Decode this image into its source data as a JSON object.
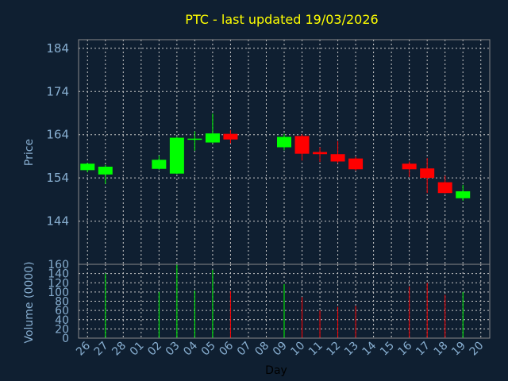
{
  "chart_data": [
    {
      "type": "candlestick",
      "title": "PTC - last updated 19/03/2026",
      "ylabel": "Price",
      "ylim": [
        134,
        186
      ],
      "yticks": [
        144,
        154,
        164,
        174,
        184
      ],
      "grid": true,
      "colors": {
        "up": "#00ff00",
        "down": "#ff0000",
        "text": "#87aed0",
        "title": "#ffff00",
        "background": "#0f1f31"
      },
      "candles": [
        {
          "day": "26",
          "open": 155.8,
          "high": 157.5,
          "low": 155.3,
          "close": 157.3
        },
        {
          "day": "27",
          "open": 154.8,
          "high": 157.0,
          "low": 152.6,
          "close": 156.6
        },
        {
          "day": "02",
          "open": 156.1,
          "high": 159.2,
          "low": 155.9,
          "close": 158.2
        },
        {
          "day": "03",
          "open": 155.0,
          "high": 163.5,
          "low": 154.9,
          "close": 163.3
        },
        {
          "day": "04",
          "open": 162.9,
          "high": 164.8,
          "low": 160.3,
          "close": 163.1
        },
        {
          "day": "05",
          "open": 162.2,
          "high": 168.9,
          "low": 162.0,
          "close": 164.3
        },
        {
          "day": "06",
          "open": 164.2,
          "high": 165.1,
          "low": 162.0,
          "close": 162.9
        },
        {
          "day": "09",
          "open": 161.1,
          "high": 164.2,
          "low": 160.4,
          "close": 163.5
        },
        {
          "day": "10",
          "open": 163.7,
          "high": 164.1,
          "low": 158.0,
          "close": 159.6
        },
        {
          "day": "11",
          "open": 160.0,
          "high": 161.1,
          "low": 157.7,
          "close": 159.5
        },
        {
          "day": "12",
          "open": 159.5,
          "high": 162.5,
          "low": 157.4,
          "close": 157.8
        },
        {
          "day": "13",
          "open": 158.5,
          "high": 158.9,
          "low": 155.7,
          "close": 156.0
        },
        {
          "day": "16",
          "open": 157.3,
          "high": 157.8,
          "low": 154.2,
          "close": 156.0
        },
        {
          "day": "17",
          "open": 156.2,
          "high": 158.6,
          "low": 150.5,
          "close": 154.0
        },
        {
          "day": "18",
          "open": 153.0,
          "high": 154.5,
          "low": 150.4,
          "close": 150.5
        },
        {
          "day": "19",
          "open": 149.3,
          "high": 152.4,
          "low": 148.7,
          "close": 150.9
        }
      ]
    },
    {
      "type": "bar",
      "ylabel": "Volume (0000)",
      "xlabel": "Day",
      "ylim": [
        0,
        160
      ],
      "yticks": [
        0,
        20,
        40,
        60,
        80,
        100,
        120,
        140,
        160
      ],
      "grid": true,
      "categories": [
        "26",
        "27",
        "28",
        "01",
        "02",
        "03",
        "04",
        "05",
        "06",
        "07",
        "08",
        "09",
        "10",
        "11",
        "12",
        "13",
        "14",
        "15",
        "16",
        "17",
        "18",
        "19",
        "20"
      ],
      "bars": [
        {
          "day": "27",
          "value": 140,
          "direction": "up"
        },
        {
          "day": "02",
          "value": 100,
          "direction": "up"
        },
        {
          "day": "03",
          "value": 160,
          "direction": "up"
        },
        {
          "day": "04",
          "value": 103,
          "direction": "up"
        },
        {
          "day": "05",
          "value": 148,
          "direction": "up"
        },
        {
          "day": "06",
          "value": 102,
          "direction": "down"
        },
        {
          "day": "09",
          "value": 117,
          "direction": "up"
        },
        {
          "day": "10",
          "value": 89,
          "direction": "down"
        },
        {
          "day": "11",
          "value": 60,
          "direction": "down"
        },
        {
          "day": "12",
          "value": 68,
          "direction": "down"
        },
        {
          "day": "13",
          "value": 70,
          "direction": "down"
        },
        {
          "day": "16",
          "value": 112,
          "direction": "down"
        },
        {
          "day": "17",
          "value": 120,
          "direction": "down"
        },
        {
          "day": "18",
          "value": 94,
          "direction": "down"
        },
        {
          "day": "19",
          "value": 100,
          "direction": "up"
        }
      ]
    }
  ]
}
